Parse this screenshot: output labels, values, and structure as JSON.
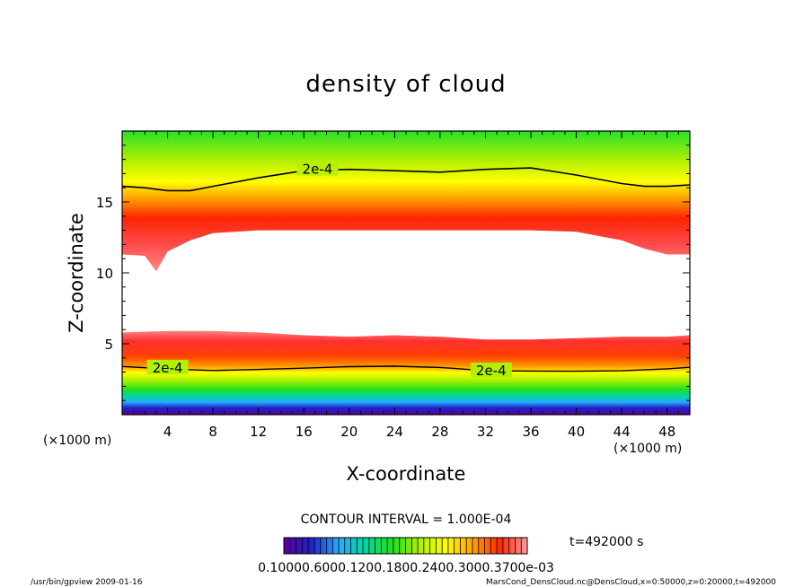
{
  "chart_data": {
    "type": "heatmap",
    "title": "density of cloud",
    "xlabel": "X-coordinate",
    "ylabel": "Z-coordinate",
    "x_unit": "(×1000 m)",
    "xlim": [
      0,
      50
    ],
    "ylim": [
      0,
      20
    ],
    "x_ticks": [
      "4",
      "8",
      "12",
      "16",
      "20",
      "24",
      "28",
      "32",
      "36",
      "40",
      "44",
      "48"
    ],
    "y_ticks": [
      "5",
      "10",
      "15"
    ],
    "contour_labels": [
      "2e-4",
      "2e-4",
      "2e-4"
    ],
    "contour_interval": "CONTOUR INTERVAL = 1.000E-04",
    "time_label": "t=492000 s",
    "colorbar_labels": "0.10000.6000.1200.1800.2400.3000.3700e-03",
    "colormap": [
      "#5a0096",
      "#2020c8",
      "#2aa8ff",
      "#00d8a0",
      "#20e020",
      "#b0f000",
      "#ffff00",
      "#ffa000",
      "#ff2800",
      "#ff9aa0"
    ],
    "upper_cloud": {
      "x": [
        0,
        2,
        3,
        4,
        6,
        8,
        12,
        16,
        20,
        24,
        28,
        32,
        36,
        40,
        44,
        46,
        48,
        50
      ],
      "top_2e4": [
        16.1,
        16.0,
        15.9,
        15.8,
        15.8,
        16.1,
        16.7,
        17.2,
        17.3,
        17.2,
        17.1,
        17.3,
        17.4,
        16.9,
        16.3,
        16.1,
        16.1,
        16.2
      ],
      "bottom": [
        11.3,
        11.2,
        10.1,
        11.5,
        12.3,
        12.8,
        13.0,
        13.0,
        13.0,
        13.0,
        13.0,
        13.0,
        13.0,
        12.9,
        12.3,
        11.7,
        11.3,
        11.3
      ]
    },
    "lower_cloud": {
      "x": [
        0,
        4,
        8,
        12,
        16,
        20,
        24,
        28,
        32,
        36,
        40,
        44,
        48,
        50
      ],
      "top": [
        5.8,
        5.9,
        5.9,
        5.8,
        5.6,
        5.5,
        5.6,
        5.5,
        5.3,
        5.3,
        5.4,
        5.5,
        5.5,
        5.6
      ],
      "contour_2e4": [
        3.4,
        3.3,
        3.2,
        3.2,
        3.2,
        3.3,
        3.4,
        3.4,
        3.2,
        3.1,
        3.0,
        3.0,
        3.2,
        3.4
      ],
      "bottom": [
        0.9,
        1.0,
        1.1,
        1.0,
        1.0,
        1.0,
        1.1,
        1.0,
        1.0,
        1.0,
        1.0,
        1.0,
        1.0,
        1.0
      ]
    }
  },
  "footer": {
    "left": "/usr/bin/gpview   2009-01-16",
    "right": "MarsCond_DensCloud.nc@DensCloud,x=0:50000,z=0:20000,t=492000"
  }
}
